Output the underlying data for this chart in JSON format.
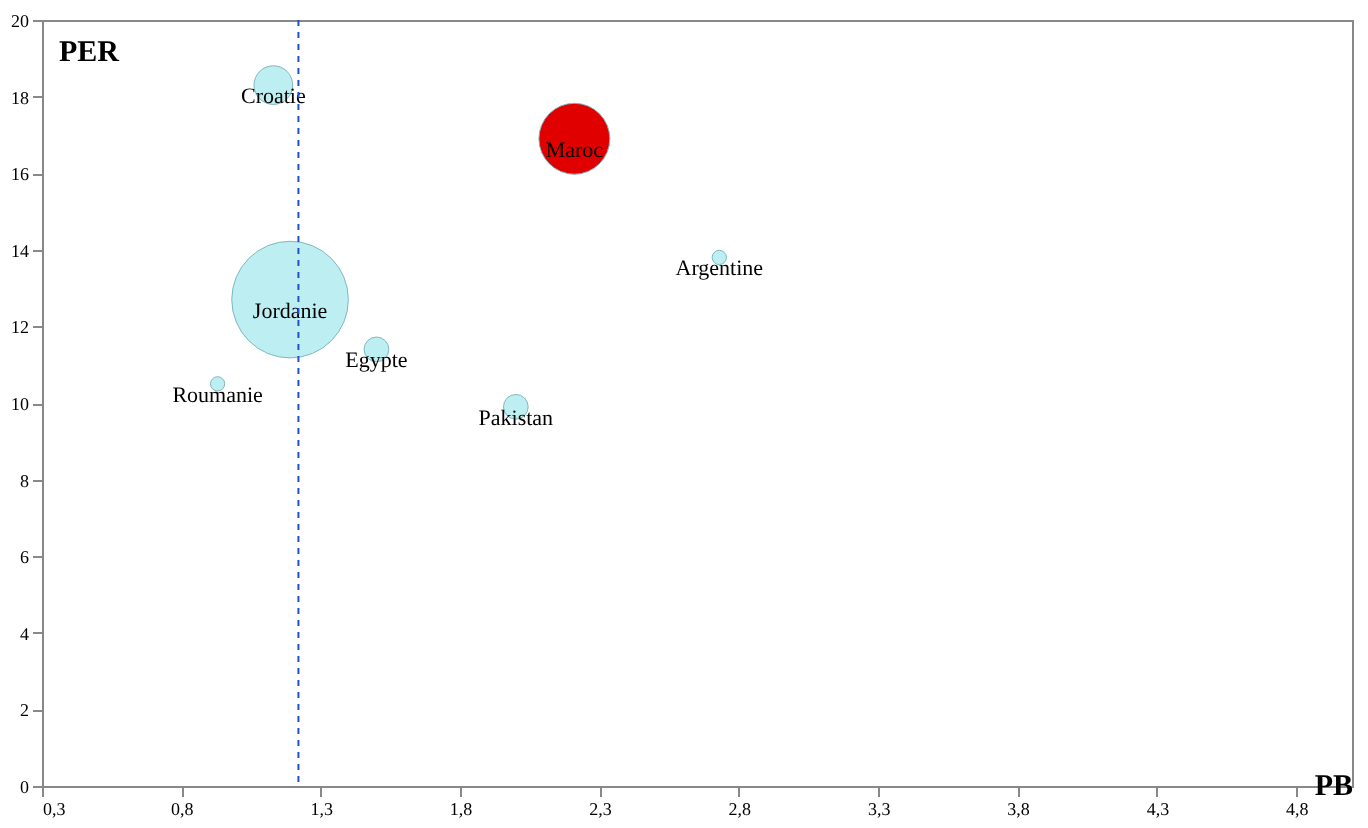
{
  "chart_data": {
    "type": "bubble",
    "xlabel": "PB",
    "ylabel": "PER",
    "series": [
      {
        "name": "Croatie",
        "color": "#bdeef2",
        "x": [
          1.13
        ],
        "values": [
          18.3
        ],
        "sizes": [
          0.11
        ]
      },
      {
        "name": "Maroc",
        "color": "#e00000",
        "x": [
          2.21
        ],
        "values": [
          16.9
        ],
        "sizes": [
          0.37
        ]
      },
      {
        "name": "Argentine",
        "color": "#bdeef2",
        "x": [
          2.73
        ],
        "values": [
          13.8
        ],
        "sizes": [
          0.015
        ]
      },
      {
        "name": "Jordanie",
        "color": "#bdeef2",
        "x": [
          1.19
        ],
        "values": [
          12.7
        ],
        "sizes": [
          1
        ]
      },
      {
        "name": "Egypte",
        "color": "#bdeef2",
        "x": [
          1.5
        ],
        "values": [
          11.4
        ],
        "sizes": [
          0.045
        ]
      },
      {
        "name": "Roumanie",
        "color": "#bdeef2",
        "x": [
          0.93
        ],
        "values": [
          10.5
        ],
        "sizes": [
          0.015
        ]
      },
      {
        "name": "Pakistan",
        "color": "#bdeef2",
        "x": [
          2.0
        ],
        "values": [
          9.9
        ],
        "sizes": [
          0.045
        ]
      }
    ],
    "xlim": [
      0.3,
      5.0
    ],
    "xticks": [
      {
        "value": 0.3,
        "label": "0,3"
      },
      {
        "value": 0.8,
        "label": "0,8"
      },
      {
        "value": 1.3,
        "label": "1,3"
      },
      {
        "value": 1.8,
        "label": "1,8"
      },
      {
        "value": 2.3,
        "label": "2,3"
      },
      {
        "value": 2.8,
        "label": "2,8"
      },
      {
        "value": 3.3,
        "label": "3,3"
      },
      {
        "value": 3.8,
        "label": "3,8"
      },
      {
        "value": 4.3,
        "label": "4,3"
      },
      {
        "value": 4.8,
        "label": "4,8"
      }
    ],
    "ylim": [
      0,
      20
    ],
    "yticks": [
      0,
      2,
      4,
      6,
      8,
      10,
      12,
      14,
      16,
      18,
      20
    ],
    "ref_lines": [
      {
        "axis": "x",
        "value": 1.22,
        "color": "#1f4fd6",
        "line_style": "dashed"
      }
    ],
    "grid": false
  }
}
